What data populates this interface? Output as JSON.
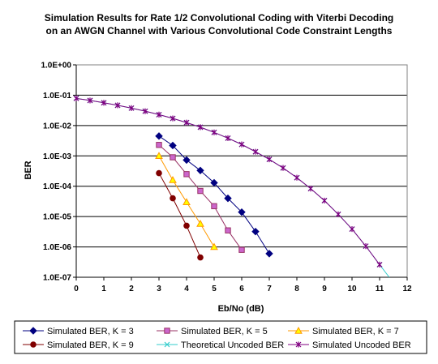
{
  "chart_data": {
    "type": "line",
    "title": [
      "Simulation Results for Rate 1/2 Convolutional Coding with Viterbi Decoding",
      "on an AWGN Channel with Various Convolutional Code Constraint Lengths"
    ],
    "xlabel": "Eb/No (dB)",
    "ylabel": "BER",
    "xlim": [
      0,
      12
    ],
    "ylim": [
      1e-07,
      1
    ],
    "yscale": "log",
    "grid": "horizontal-major",
    "legend_position": "bottom",
    "x_ticks": [
      "0",
      "1",
      "2",
      "3",
      "4",
      "5",
      "6",
      "7",
      "8",
      "9",
      "10",
      "11",
      "12"
    ],
    "y_ticks": [
      "1.0E-07",
      "1.0E-06",
      "1.0E-05",
      "1.0E-04",
      "1.0E-03",
      "1.0E-02",
      "1.0E-01",
      "1.0E+00"
    ],
    "series": [
      {
        "name": "Simulated BER, K = 3",
        "color": "#000080",
        "marker": "diamond",
        "x": [
          3,
          3.5,
          4,
          4.5,
          5,
          5.5,
          6,
          6.5,
          7
        ],
        "y": [
          0.0045,
          0.0022,
          0.00073,
          0.00033,
          0.00013,
          4e-05,
          1.4e-05,
          3.2e-06,
          6e-07
        ]
      },
      {
        "name": "Simulated BER, K = 5",
        "color": "#993366",
        "fill": "#cc66cc",
        "marker": "square",
        "x": [
          3,
          3.5,
          4,
          4.5,
          5,
          5.5,
          6
        ],
        "y": [
          0.0023,
          0.0009,
          0.00025,
          7e-05,
          2.2e-05,
          3.5e-06,
          8e-07
        ]
      },
      {
        "name": "Simulated BER, K = 7",
        "color": "#ff9900",
        "fill": "#ffff00",
        "marker": "triangle",
        "x": [
          3,
          3.5,
          4,
          4.5,
          5
        ],
        "y": [
          0.001,
          0.00016,
          3e-05,
          5.8e-06,
          1e-06
        ]
      },
      {
        "name": "Simulated BER, K = 9",
        "color": "#800000",
        "marker": "circle",
        "x": [
          3,
          3.5,
          4,
          4.5
        ],
        "y": [
          0.00027,
          4e-05,
          5e-06,
          4.5e-07
        ]
      },
      {
        "name": "Theoretical Uncoded BER",
        "color": "#33cccc",
        "marker": "cross",
        "x": [
          0,
          0.5,
          1,
          1.5,
          2,
          2.5,
          3,
          3.5,
          4,
          4.5,
          5,
          5.5,
          6,
          6.5,
          7,
          7.5,
          8,
          8.5,
          9,
          9.5,
          10,
          10.5,
          11,
          11.35
        ],
        "y": [
          0.0786,
          0.0671,
          0.0563,
          0.0464,
          0.0375,
          0.0297,
          0.0229,
          0.0172,
          0.0125,
          0.00882,
          0.00595,
          0.00383,
          0.00239,
          0.00137,
          0.00077,
          0.000401,
          0.000191,
          8.34e-05,
          3.36e-05,
          1.19e-05,
          3.87e-06,
          1.06e-06,
          2.61e-07,
          1e-07
        ]
      },
      {
        "name": "Simulated Uncoded BER",
        "color": "#800080",
        "marker": "asterisk",
        "x": [
          0,
          0.5,
          1,
          1.5,
          2,
          2.5,
          3,
          3.5,
          4,
          4.5,
          5,
          5.5,
          6,
          6.5,
          7,
          7.5,
          8,
          8.5,
          9,
          9.5,
          10,
          10.5,
          11
        ],
        "y": [
          0.0786,
          0.0671,
          0.0563,
          0.0464,
          0.0375,
          0.0297,
          0.0229,
          0.0172,
          0.0125,
          0.00882,
          0.00595,
          0.00383,
          0.00239,
          0.00137,
          0.00077,
          0.000401,
          0.000191,
          8.34e-05,
          3.36e-05,
          1.19e-05,
          3.87e-06,
          1.06e-06,
          2.61e-07
        ]
      }
    ]
  }
}
